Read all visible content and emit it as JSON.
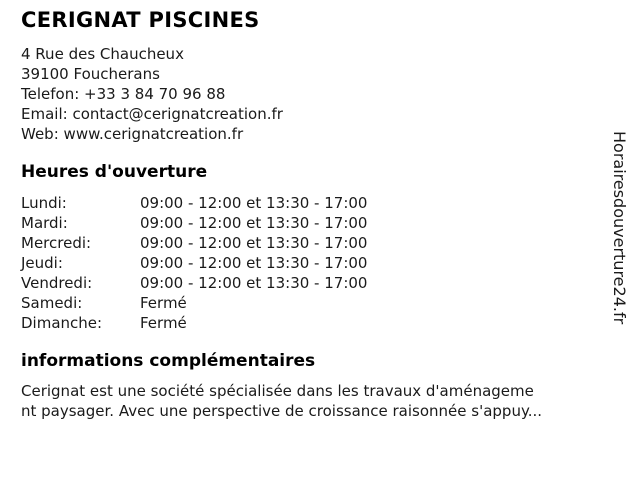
{
  "business": {
    "name": "CERIGNAT PISCINES",
    "address_line1": "4 Rue des Chaucheux",
    "address_line2": "39100 Foucherans",
    "phone_label": "Telefon:",
    "phone_value": "+33 3 84 70 96 88",
    "email_label": "Email:",
    "email_value": "contact@cerignatcreation.fr",
    "web_label": "Web:",
    "web_value": "www.cerignatcreation.fr"
  },
  "hours": {
    "title": "Heures d'ouverture",
    "rows": [
      {
        "day": "Lundi:",
        "time": "09:00 - 12:00 et 13:30 - 17:00"
      },
      {
        "day": "Mardi:",
        "time": "09:00 - 12:00 et 13:30 - 17:00"
      },
      {
        "day": "Mercredi:",
        "time": "09:00 - 12:00 et 13:30 - 17:00"
      },
      {
        "day": "Jeudi:",
        "time": "09:00 - 12:00 et 13:30 - 17:00"
      },
      {
        "day": "Vendredi:",
        "time": "09:00 - 12:00 et 13:30 - 17:00"
      },
      {
        "day": "Samedi:",
        "time": "Fermé"
      },
      {
        "day": "Dimanche:",
        "time": "Fermé"
      }
    ]
  },
  "info": {
    "title": "informations complémentaires",
    "line1": "Cerignat est une société spécialisée dans les travaux d'aménageme",
    "line2": "nt paysager. Avec une perspective de croissance raisonnée s'appuy..."
  },
  "watermark": {
    "text": "Horairesdouverture24.fr"
  },
  "colors": {
    "background": "#ffffff",
    "heading_text": "#000000",
    "body_text": "#1a1a1a"
  }
}
